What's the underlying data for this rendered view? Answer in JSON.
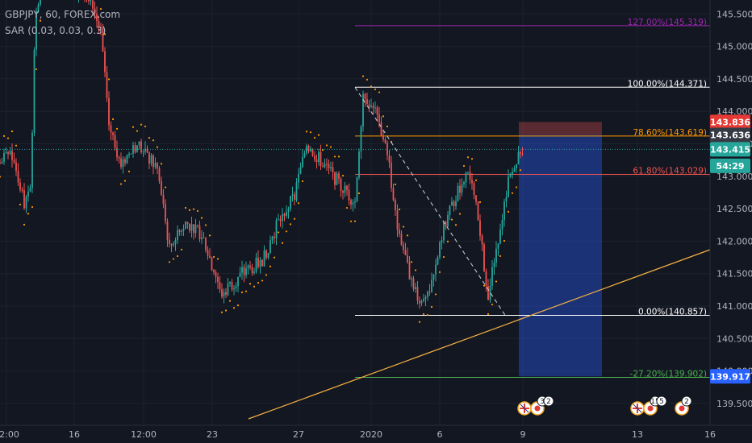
{
  "chart_data": {
    "type": "candlestick",
    "symbol_line": "GBPJPY, 60, FOREX.com",
    "indicator_line": "SAR (0.03, 0.03, 0.3)",
    "y_ticks": [
      "145.500",
      "145.000",
      "144.500",
      "144.000",
      "143.500",
      "143.000",
      "142.500",
      "142.000",
      "141.500",
      "141.000",
      "140.500",
      "140.000",
      "139.500"
    ],
    "y_tick_values": [
      145.5,
      145.0,
      144.5,
      144.0,
      143.5,
      143.0,
      142.5,
      142.0,
      141.5,
      141.0,
      140.5,
      140.0,
      139.5
    ],
    "ylim": [
      139.33,
      145.82
    ],
    "x_ticks": [
      "12:00",
      "16",
      "12:00",
      "23",
      "27",
      "2020",
      "6",
      "9",
      "13",
      "16"
    ],
    "fib_levels": [
      {
        "label": "127.00%(145.319)",
        "value": 145.319,
        "color": "#9c27b0"
      },
      {
        "label": "100.00%(144.371)",
        "value": 144.371,
        "color": "#ffffff"
      },
      {
        "label": "78.60%(143.619)",
        "value": 143.619,
        "color": "#ff9800"
      },
      {
        "label": "61.80%(143.029)",
        "value": 143.029,
        "color": "#ef5350"
      },
      {
        "label": "0.00%(140.857)",
        "value": 140.857,
        "color": "#ffffff"
      },
      {
        "label": "-27.20%(139.902)",
        "value": 139.902,
        "color": "#4caf50"
      }
    ],
    "price_badges": [
      {
        "label": "143.836",
        "value": 143.836,
        "color": "#e53935",
        "text_color": "#ffffff"
      },
      {
        "label": "143.636",
        "value": 143.636,
        "color": "#363a45",
        "text_color": "#ffffff"
      },
      {
        "label": "143.415",
        "value": 143.415,
        "color": "#26a69a",
        "text_color": "#ffffff"
      },
      {
        "label": "54:29",
        "value": 143.16,
        "color": "#26a69a",
        "text_color": "#ffffff"
      },
      {
        "label": "139.917",
        "value": 139.917,
        "color": "#2962ff",
        "text_color": "#ffffff"
      }
    ],
    "last_price": 143.415,
    "position": {
      "type": "short",
      "entry": 143.636,
      "stop": 143.836,
      "target": 139.917
    },
    "trendline": {
      "color": "#f5b041"
    },
    "event_markers": [
      {
        "icons": [
          "uk-flag-icon",
          "japan-flag-icon"
        ],
        "count": "3",
        "count2": "2"
      },
      {
        "icons": [
          "uk-flag-icon",
          "japan-flag-icon"
        ],
        "count": "15",
        "count2": "5"
      },
      {
        "icons": [
          "japan-flag-icon"
        ],
        "count": "2"
      }
    ],
    "colors": {
      "up": "#26a69a",
      "down": "#ef5350",
      "sar": "#ff9800",
      "background": "#131722",
      "axis_text": "#b2b5be"
    }
  }
}
